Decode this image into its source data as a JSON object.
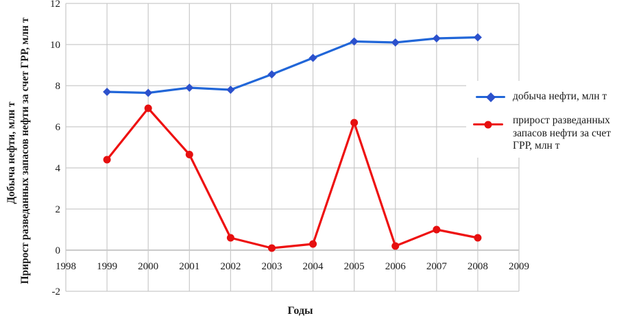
{
  "chart_data": {
    "type": "line",
    "xlabel": "Годы",
    "ylabel_line1": "Добыча нефти, млн т",
    "ylabel_line2": "Прирост разведанных запасов нефти за счет ГРР, млн т",
    "xlim": [
      1998,
      2009
    ],
    "ylim": [
      -2,
      12
    ],
    "x_ticks": [
      1998,
      1999,
      2000,
      2001,
      2002,
      2003,
      2004,
      2005,
      2006,
      2007,
      2008,
      2009
    ],
    "y_ticks": [
      12,
      10,
      8,
      6,
      4,
      2,
      0,
      -2
    ],
    "grid": true,
    "legend_position": "right",
    "x": [
      1999,
      2000,
      2001,
      2002,
      2003,
      2004,
      2005,
      2006,
      2007,
      2008
    ],
    "series": [
      {
        "name": "добыча нефти, млн т",
        "marker": "diamond",
        "line_color": "#2166d8",
        "marker_color": "#2c51cc",
        "values": [
          7.7,
          7.65,
          7.9,
          7.8,
          8.55,
          9.35,
          10.15,
          10.1,
          10.3,
          10.35
        ]
      },
      {
        "name": "прирост разведанных запасов нефти за счет ГРР, млн т",
        "marker": "circle",
        "line_color": "#ee1111",
        "marker_color": "#e60f0f",
        "values": [
          4.4,
          6.9,
          4.65,
          0.6,
          0.1,
          0.3,
          6.2,
          0.2,
          1.0,
          0.6
        ]
      }
    ]
  },
  "colors": {
    "grid": "#c9c9c9",
    "zero_axis": "#ababab",
    "text": "#1a1a1a"
  },
  "legend": {
    "series1_label": "добыча нефти, млн т",
    "series2_label": "прирост разведанных запасов нефти за счет ГРР, млн т"
  },
  "axes": {
    "x_title": "Годы",
    "y_title_line1": "Добыча нефти, млн т",
    "y_title_line2": "Прирост разведанных запасов нефти за счет ГРР, млн т"
  }
}
